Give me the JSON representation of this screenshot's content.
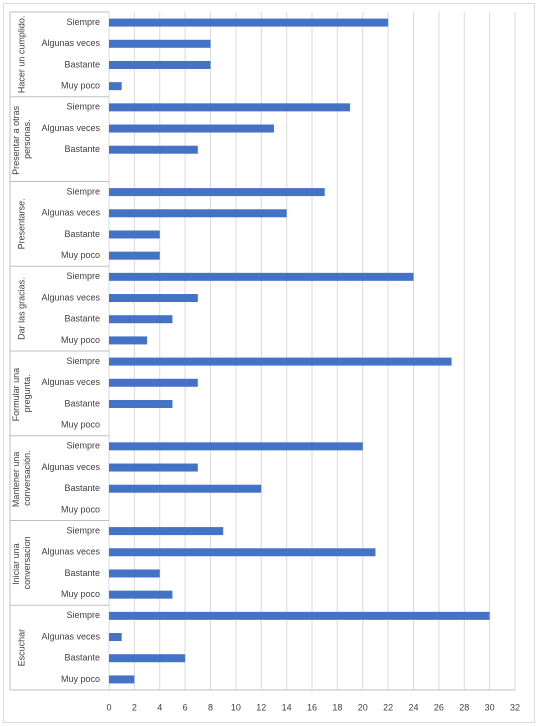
{
  "chart_data": {
    "type": "bar",
    "orientation": "horizontal",
    "color": "#4472c4",
    "grid": true,
    "xlim": [
      0,
      32
    ],
    "xticks": [
      0,
      2,
      4,
      6,
      8,
      10,
      12,
      14,
      16,
      18,
      20,
      22,
      24,
      26,
      28,
      30,
      32
    ],
    "groups": [
      {
        "label": "Hacer un cumplido.",
        "categories": [
          "Siempre",
          "Algunas veces",
          "Bastante",
          "Muy poco"
        ],
        "values": [
          22,
          8,
          8,
          1
        ]
      },
      {
        "label": "Presentar a otras personas.",
        "categories": [
          "Siempre",
          "Algunas veces",
          "Bastante",
          null
        ],
        "values": [
          19,
          13,
          7,
          null
        ]
      },
      {
        "label": "Presentarse.",
        "categories": [
          "Siempre",
          "Algunas veces",
          "Bastante",
          "Muy poco"
        ],
        "values": [
          17,
          14,
          4,
          4
        ]
      },
      {
        "label": "Dar las gracias.",
        "categories": [
          "Siempre",
          "Algunas veces",
          "Bastante",
          "Muy poco"
        ],
        "values": [
          24,
          7,
          5,
          3
        ]
      },
      {
        "label": "Formular una pregunta.",
        "categories": [
          "Siempre",
          "Algunas veces",
          "Bastante",
          "Muy poco"
        ],
        "values": [
          27,
          7,
          5,
          null
        ]
      },
      {
        "label": "Mantener una conversación.",
        "categories": [
          "Siempre",
          "Algunas veces",
          "Bastante",
          "Muy poco"
        ],
        "values": [
          20,
          7,
          12,
          null
        ]
      },
      {
        "label": "Iniciar una conversacion",
        "categories": [
          "Siempre",
          "Algunas veces",
          "Bastante",
          "Muy poco"
        ],
        "values": [
          9,
          21,
          4,
          5
        ]
      },
      {
        "label": "Escuchar",
        "categories": [
          "Siempre",
          "Algunas veces",
          "Bastante",
          "Muy poco"
        ],
        "values": [
          30,
          1,
          6,
          2
        ]
      }
    ]
  }
}
